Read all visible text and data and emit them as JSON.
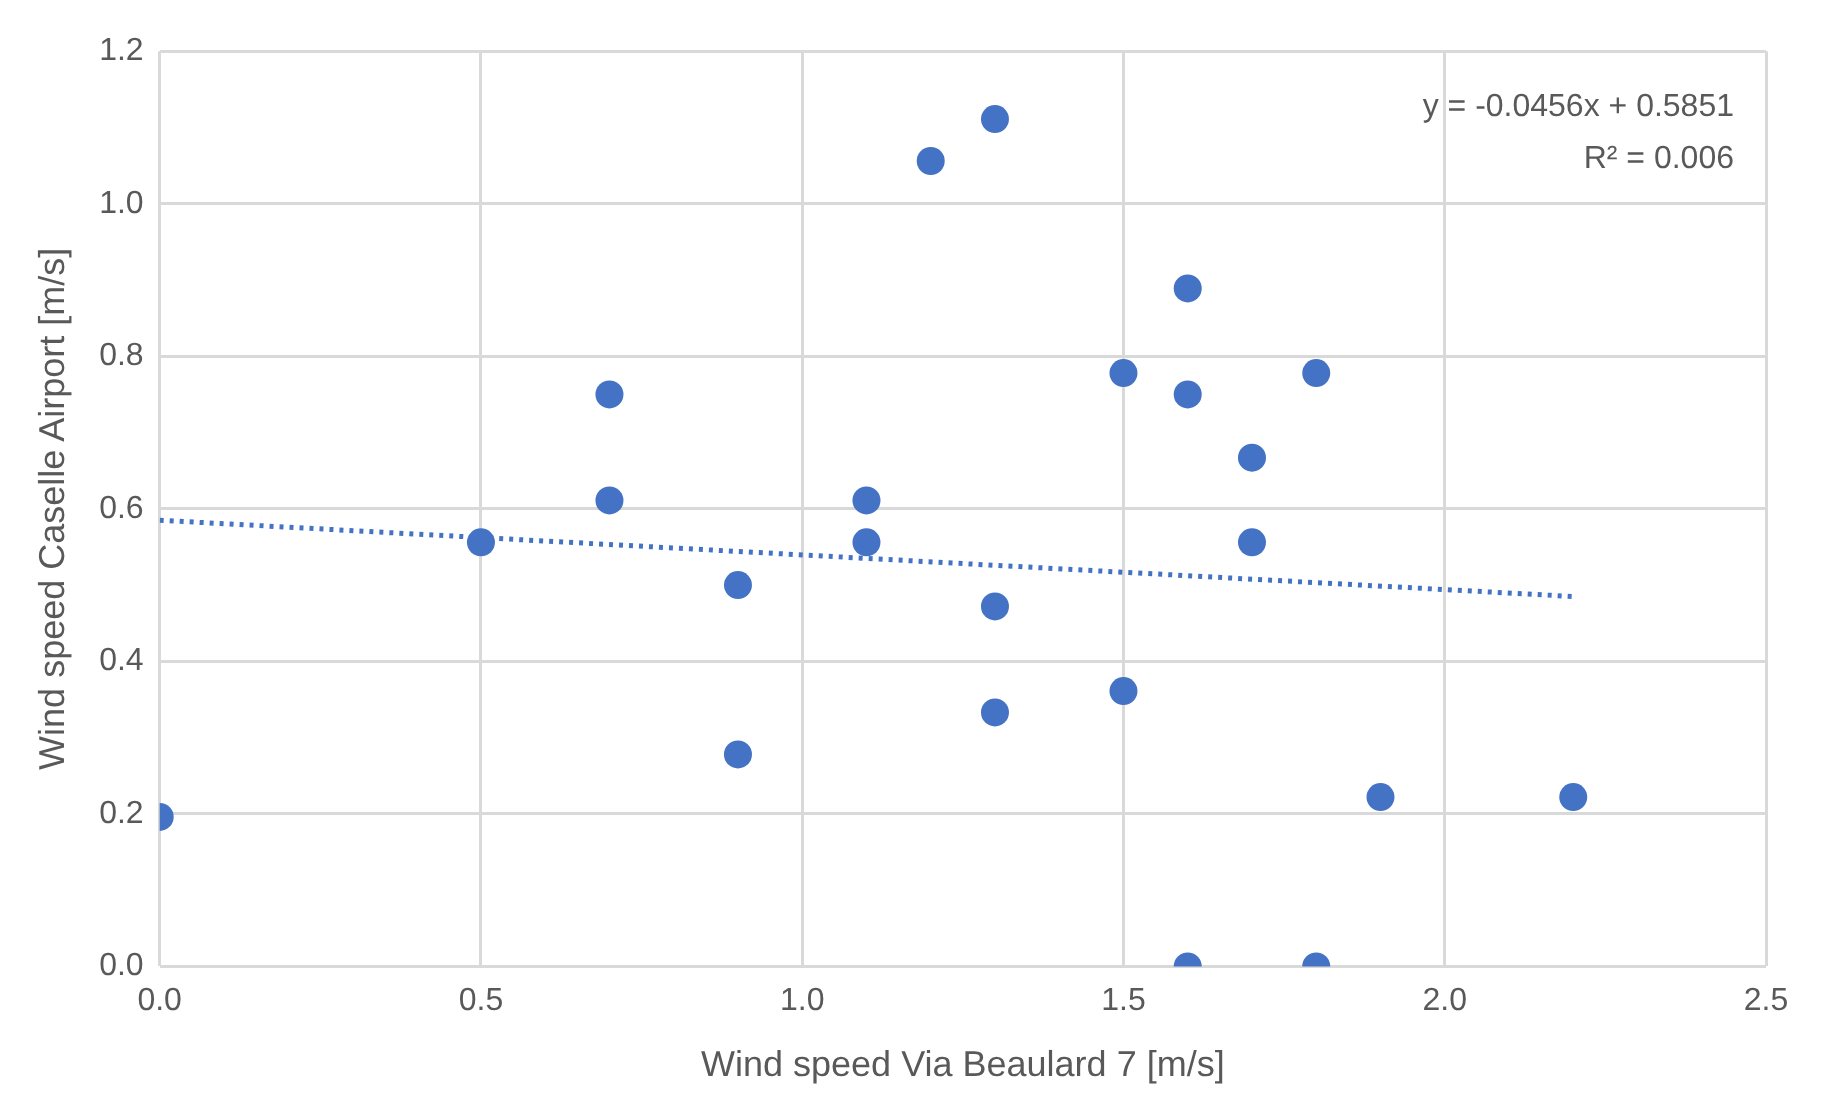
{
  "chart_data": {
    "type": "scatter",
    "xlabel": "Wind speed Via Beaulard 7 [m/s]",
    "ylabel": "Wind speed Caselle Airport [m/s]",
    "xlim": [
      0,
      2.5
    ],
    "xticks": [
      {
        "value": 0,
        "label": "0.0"
      },
      {
        "value": 0.5,
        "label": "0.5"
      },
      {
        "value": 1,
        "label": "1.0"
      },
      {
        "value": 1.5,
        "label": "1.5"
      },
      {
        "value": 2,
        "label": "2.0"
      },
      {
        "value": 2.5,
        "label": "2.5"
      }
    ],
    "ylim": [
      0,
      1.2
    ],
    "yticks": [
      {
        "value": 0,
        "label": "0.0"
      },
      {
        "value": 0.2,
        "label": "0.2"
      },
      {
        "value": 0.4,
        "label": "0.4"
      },
      {
        "value": 0.6,
        "label": "0.6"
      },
      {
        "value": 0.8,
        "label": "0.8"
      },
      {
        "value": 1,
        "label": "1.0"
      },
      {
        "value": 1.2,
        "label": "1.2"
      }
    ],
    "grid": true,
    "marker": "circle",
    "series": [
      {
        "type": "scatter",
        "color": "#4472c4",
        "x": [
          0,
          0.5,
          0.7,
          0.7,
          0.9,
          0.9,
          1.1,
          1.1,
          1.2,
          1.3,
          1.3,
          1.3,
          1.5,
          1.5,
          1.6,
          1.6,
          1.6,
          1.7,
          1.7,
          1.8,
          1.8,
          1.9,
          2.2
        ],
        "values": [
          0.196,
          0.556,
          0.75,
          0.611,
          0.5,
          0.278,
          0.611,
          0.556,
          1.056,
          1.111,
          0.472,
          0.333,
          0.778,
          0.361,
          0.889,
          0.75,
          0,
          0.667,
          0.556,
          0.778,
          0,
          0.222,
          0.222
        ]
      },
      {
        "type": "line",
        "color": "#4472c4",
        "line_style": "dotted",
        "marker": "none",
        "x": [
          0,
          2.2
        ],
        "values": [
          0.585,
          0.485
        ]
      }
    ],
    "annotations": [
      "y = -0.0456x + 0.5851",
      "R² = 0.006"
    ]
  }
}
